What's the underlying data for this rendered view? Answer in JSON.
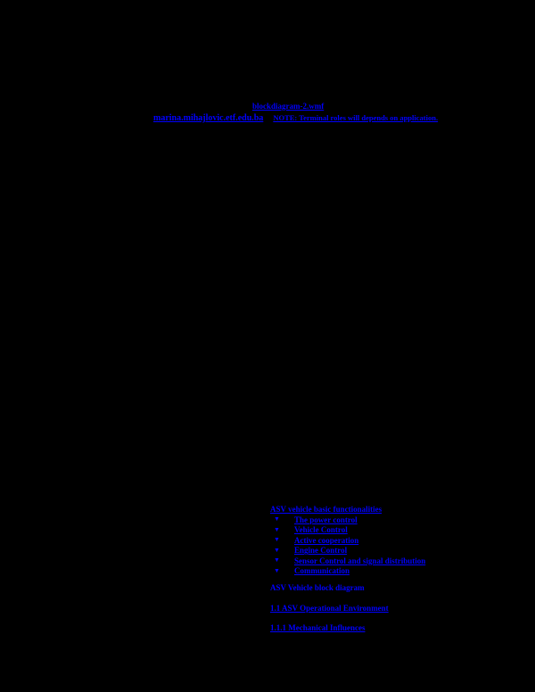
{
  "page": {
    "background_color": "#000000",
    "link_color": "#0000ff"
  },
  "figure_links": {
    "file_link": "blockdiagram-2.wmf",
    "email_link": "marina.mihajlovic.etf.edu.ba",
    "note_text": "NOTE: Terminal roles will depends on application."
  },
  "outline": {
    "bullet": "▼",
    "functional_heading": "ASV vehicle basic functionalities",
    "items": [
      {
        "label": "The power control"
      },
      {
        "label": "Vehicle Control"
      },
      {
        "label": "Active cooperation"
      },
      {
        "label": "Engine Control"
      },
      {
        "label": "Sensor Control and signal distribution"
      },
      {
        "label": "Communication"
      }
    ],
    "diagram_heading": "ASV Vehicle block diagram",
    "section_heading": "1.1 ASV Operational Environment",
    "subsection_heading": "1.1.1 Mechanical Influences"
  }
}
